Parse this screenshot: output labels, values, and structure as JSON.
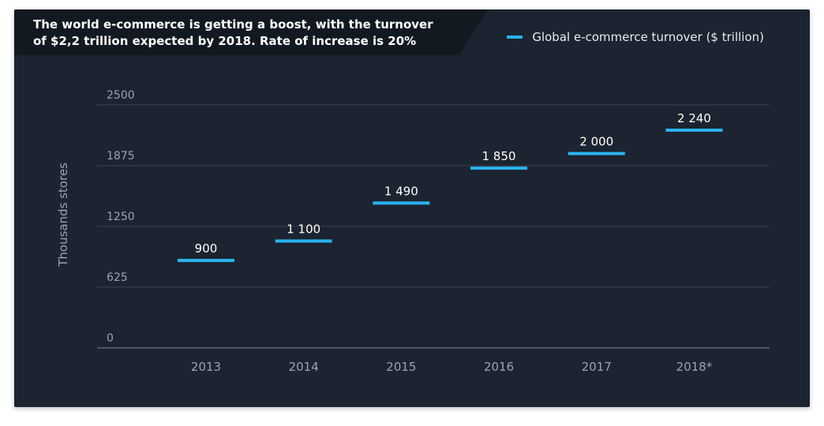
{
  "colors": {
    "background": "#1b2430",
    "title_band": "#121920",
    "series": "#2bb3f0",
    "grid": "#3a4553",
    "axis_text": "#9aa5b1",
    "label_text": "#ffffff"
  },
  "chart_data": {
    "type": "bar",
    "title": "The world e-commerce is getting a boost, with the turnover of $2,2 trillion expected by 2018. Rate of increase is 20%",
    "xlabel": "",
    "ylabel": "Thousands stores",
    "categories": [
      "2013",
      "2014",
      "2015",
      "2016",
      "2017",
      "2018*"
    ],
    "series": [
      {
        "name": "Global e-commerce turnover ($ trillion)",
        "values": [
          900,
          1100,
          1490,
          1850,
          2000,
          2240
        ],
        "labels": [
          "900",
          "1 100",
          "1 490",
          "1 850",
          "2 000",
          "2 240"
        ]
      }
    ],
    "ylim": [
      0,
      2500
    ],
    "yticks": [
      "0",
      "625",
      "1250",
      "1875",
      "2500"
    ],
    "grid": true,
    "legend_position": "top-right",
    "mark": "horizontal-dash"
  }
}
